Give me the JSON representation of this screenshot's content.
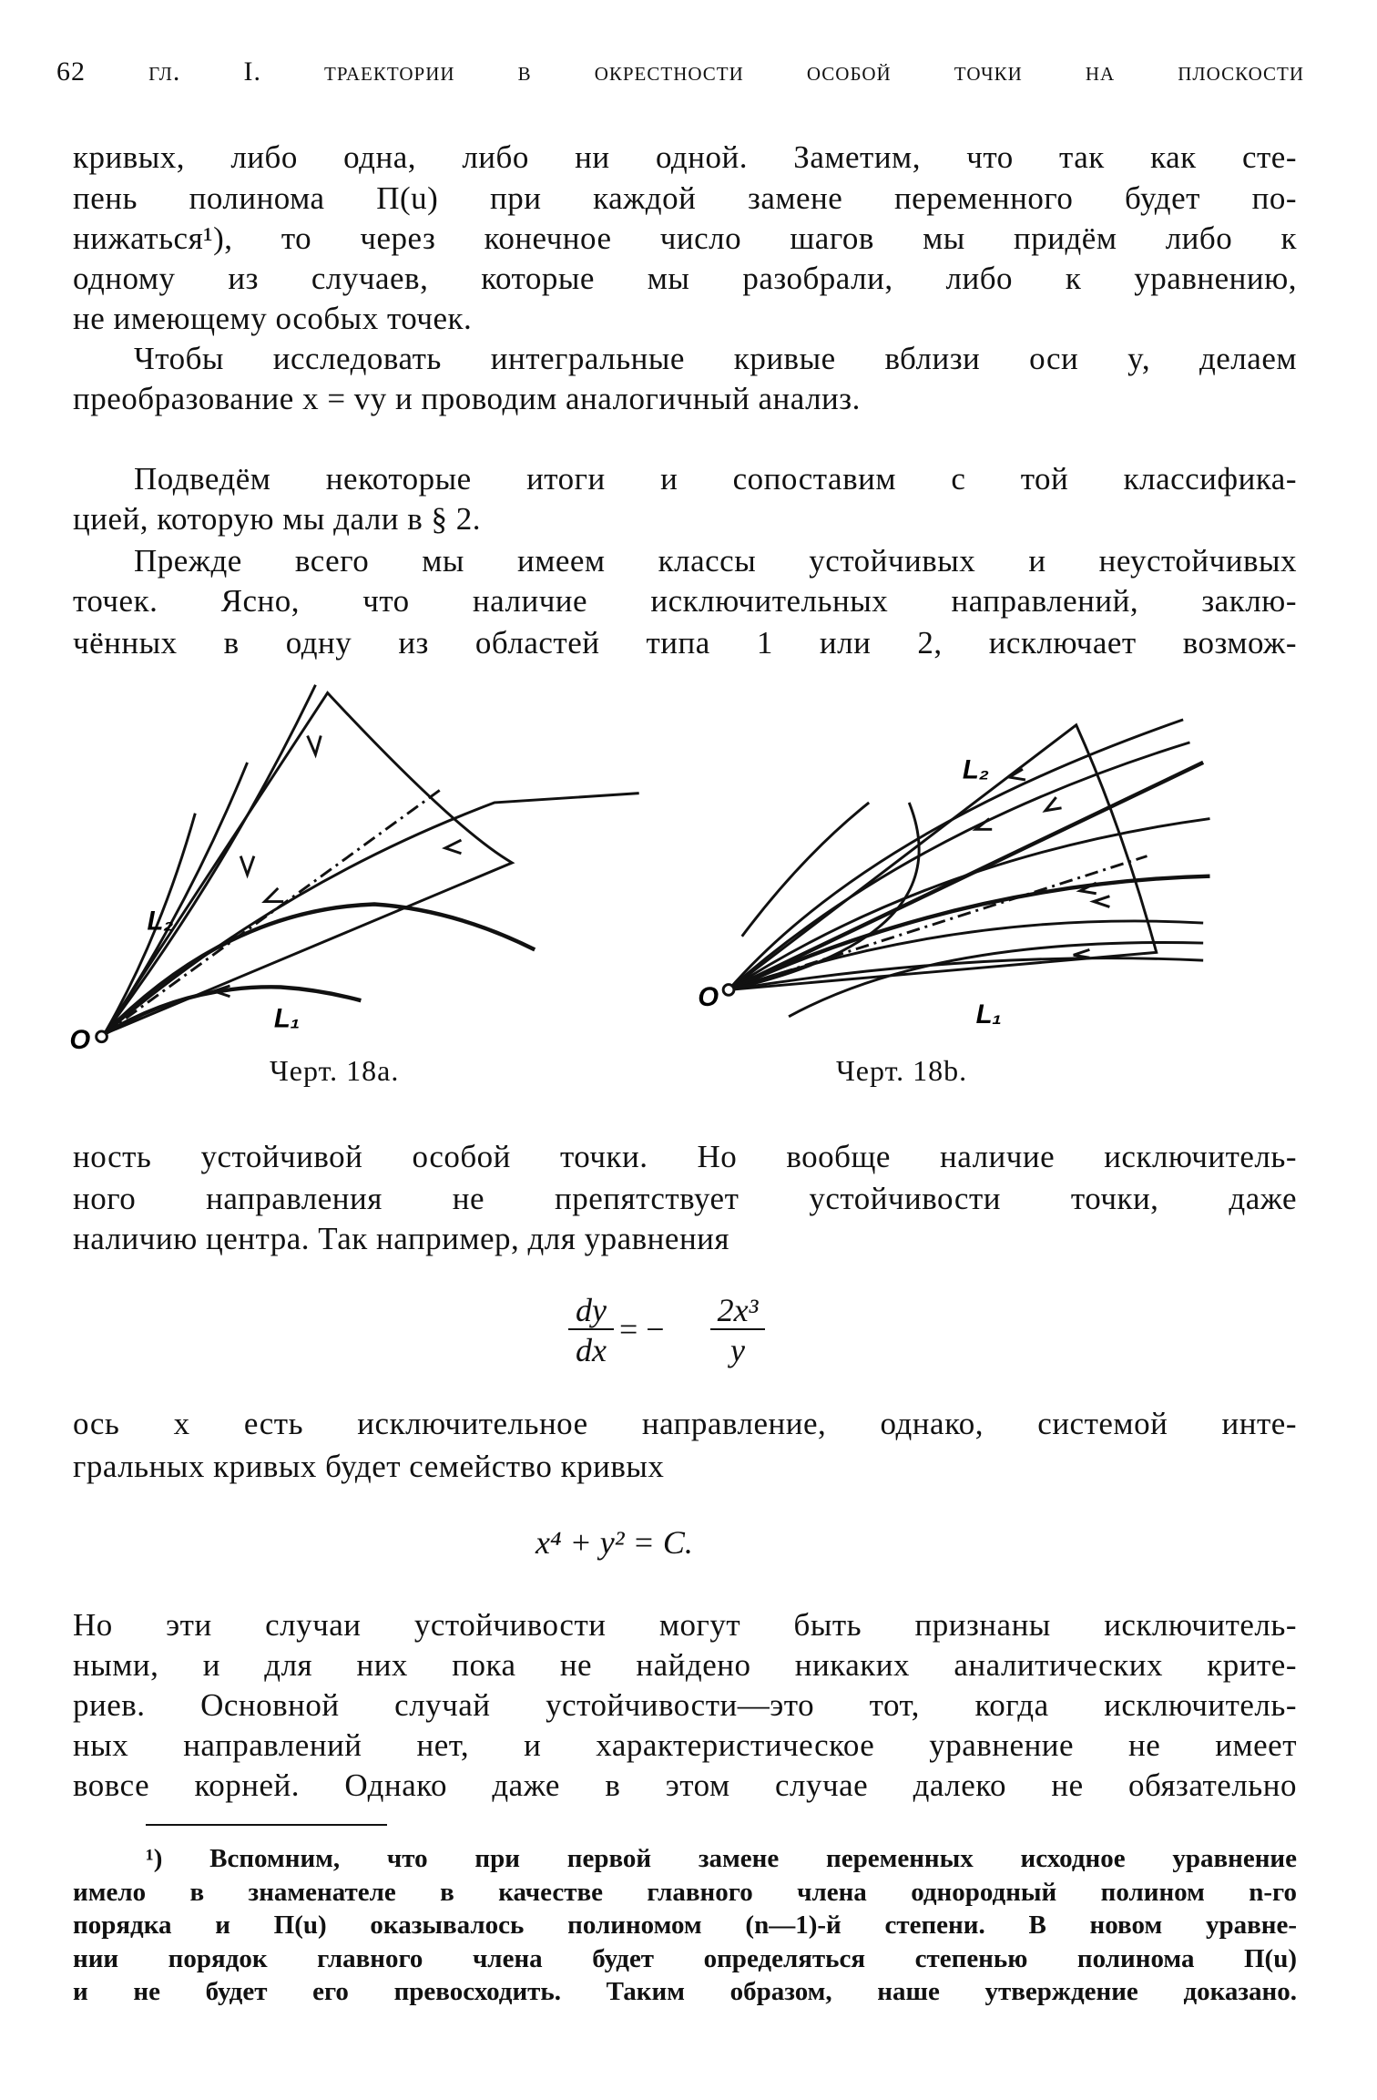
{
  "header": {
    "page_number": "62",
    "title": "гл. I. траектории в окрестности особой точки на плоскости"
  },
  "paragraphs": [
    "кривых, либо одна, либо ни одной. Заметим, что так как сте-",
    "пень полинома П(u) при каждой замене переменного будет по-",
    "нижаться¹), то через конечное число шагов мы придём либо к",
    "одному из случаев, которые мы разобрали, либо к уравнению,",
    "не имеющему особых точек.",
    "Чтобы исследовать интегральные кривые вблизи оси y, делаем",
    "преобразование x = vy и проводим аналогичный анализ.",
    "Подведём некоторые итоги и сопоставим с той классифика-",
    "цией, которую мы дали в § 2.",
    "Прежде всего мы имеем классы устойчивых и неустойчивых",
    "точек. Ясно, что наличие исключительных направлений, заклю-",
    "чённых в одну из областей типа 1 или 2, исключает возмож-",
    "ность устойчивой особой точки. Но вообще наличие исключитель-",
    "ного направления не препятствует устойчивости точки, даже",
    "наличию центра. Так например, для уравнения",
    "ось x есть исключительное направление, однако, системой инте-",
    "гральных кривых будет семейство кривых",
    "Но эти случаи устойчивости могут быть признаны исключитель-",
    "ными, и для них пока не найдено никаких аналитических крите-",
    "риев. Основной случай устойчивости—это тот, когда исключитель-",
    "ных направлений нет, и характеристическое уравнение не имеет",
    "вовсе корней. Однако даже в этом случае далеко не обязательно"
  ],
  "figures": [
    {
      "caption": "Черт. 18a.",
      "labels": {
        "origin": "O",
        "l1": "L₁",
        "l2": "L₂"
      }
    },
    {
      "caption": "Черт. 18b.",
      "labels": {
        "origin": "O",
        "l1": "L₁",
        "l2": "L₂"
      }
    }
  ],
  "equations": {
    "eq1_num_left": "dy",
    "eq1_den_left": "dx",
    "eq1_op": "= −",
    "eq1_num_right": "2x³",
    "eq1_den_right": "y",
    "eq2": "x⁴ + y² = C."
  },
  "footnote": [
    "¹) Вспомним, что при первой замене переменных исходное уравнение",
    "имело в знаменателе в качестве главного члена однородный полином n-го",
    "порядка и П(u) оказывалось полиномом (n—1)-й степени. В новом уравне-",
    "нии порядок главного члена будет определяться степенью полинома П(u)",
    "и не будет его превосходить. Таким образом, наше утверждение доказано."
  ]
}
